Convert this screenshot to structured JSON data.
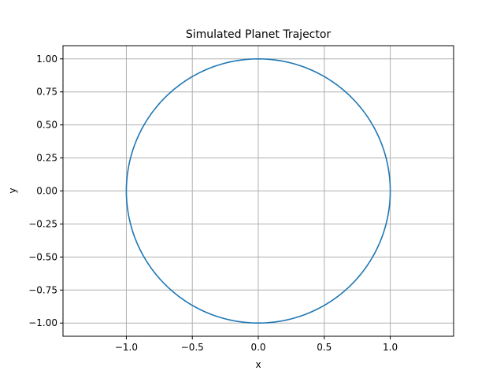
{
  "chart_data": {
    "type": "line",
    "title": "Simulated Planet Trajector",
    "xlabel": "x",
    "ylabel": "y",
    "xlim": [
      -1.48,
      1.48
    ],
    "ylim": [
      -1.1,
      1.1
    ],
    "grid": true,
    "x_ticks": [
      -1.0,
      -0.5,
      0.0,
      0.5,
      1.0
    ],
    "x_tick_labels": [
      "−1.0",
      "−0.5",
      "0.0",
      "0.5",
      "1.0"
    ],
    "y_ticks": [
      -1.0,
      -0.75,
      -0.5,
      -0.25,
      0.0,
      0.25,
      0.5,
      0.75,
      1.0
    ],
    "y_tick_labels": [
      "−1.00",
      "−0.75",
      "−0.50",
      "−0.25",
      "0.00",
      "0.25",
      "0.50",
      "0.75",
      "1.00"
    ],
    "series": [
      {
        "color": "#1f77b4",
        "shape": "circle",
        "center": [
          0,
          0
        ],
        "radius": 1.0
      }
    ]
  }
}
